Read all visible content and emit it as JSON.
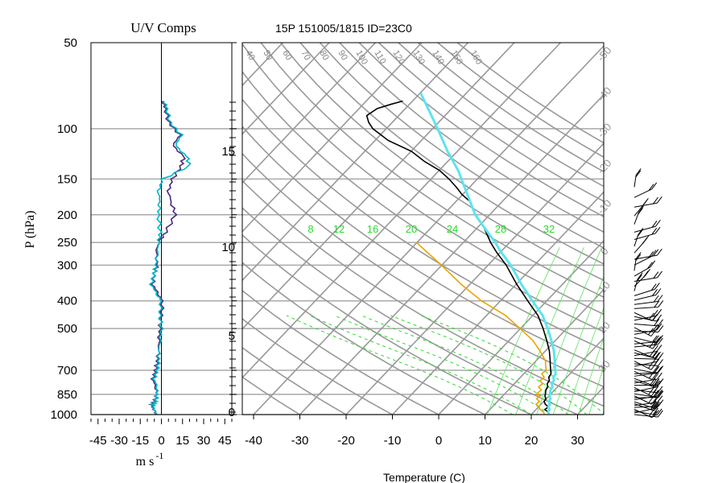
{
  "chart_data": [
    {
      "type": "line",
      "panel": "wind-components",
      "title": "U/V Comps",
      "xlabel": "m s",
      "xlabel_exponent": "-1",
      "ylabel": "P (hPa)",
      "y_scale": "log (reversed)",
      "ylim": [
        1000,
        50
      ],
      "y_ticks": [
        50,
        100,
        150,
        200,
        250,
        300,
        400,
        500,
        700,
        850,
        1000
      ],
      "y_tick_labels": [
        "50",
        "100",
        "150",
        "200",
        "250",
        "300",
        "400",
        "500",
        "700",
        "850",
        "1000"
      ],
      "xlim": [
        -50,
        50
      ],
      "x_ticks": [
        -45,
        -30,
        -15,
        0,
        15,
        30,
        45
      ],
      "x_tick_labels": [
        "-45",
        "-30",
        "-15",
        "0",
        "15",
        "30",
        "45"
      ],
      "grid": true,
      "series": [
        {
          "color": "#4b2a7b",
          "p": [
            1000,
            970,
            930,
            900,
            850,
            800,
            750,
            700,
            650,
            600,
            550,
            500,
            450,
            400,
            380,
            350,
            320,
            300,
            270,
            250,
            230,
            200,
            180,
            165,
            150,
            135,
            125,
            115,
            105,
            95,
            85,
            80
          ],
          "values": [
            -4,
            -5,
            -7,
            -5,
            -3,
            -4,
            -6,
            -4,
            -3,
            -2,
            -2,
            -1,
            0,
            1,
            -2,
            -6,
            -5,
            -3,
            -4,
            -2,
            3,
            10,
            7,
            5,
            8,
            14,
            16,
            8,
            13,
            5,
            3,
            1
          ]
        },
        {
          "color": "#00b8c8",
          "p": [
            1000,
            970,
            930,
            900,
            850,
            800,
            750,
            700,
            650,
            600,
            550,
            500,
            450,
            400,
            380,
            350,
            320,
            300,
            270,
            250,
            230,
            200,
            180,
            165,
            150,
            135,
            125,
            115,
            105,
            95,
            85,
            80
          ],
          "values": [
            -3,
            -5,
            -6,
            -4,
            -3,
            -3,
            -5,
            -3,
            -2,
            -2,
            -1,
            0,
            -1,
            0,
            -3,
            -7,
            -5,
            -4,
            -3,
            -2,
            -1,
            -2,
            -1,
            -2,
            1,
            20,
            18,
            10,
            14,
            6,
            4,
            2
          ]
        }
      ]
    },
    {
      "type": "line",
      "panel": "skew-t",
      "title": "15P 151005/1815 ID=23C0",
      "xlabel": "Temperature (C)",
      "xlim": [
        -40,
        40
      ],
      "x_ticks": [
        -40,
        -30,
        -20,
        -10,
        0,
        10,
        20,
        30
      ],
      "x_tick_labels": [
        "-40",
        "-30",
        "-20",
        "-10",
        "0",
        "10",
        "20",
        "30"
      ],
      "height_ticks_km": [
        0,
        5,
        10,
        15
      ],
      "height_tick_labels": [
        "0",
        "5",
        "10",
        "15"
      ],
      "mixing_ratio_labels": [
        "8",
        "12",
        "16",
        "20",
        "24",
        "28",
        "32"
      ],
      "adiabat_labels": [
        "40",
        "50",
        "60",
        "70",
        "80",
        "90",
        "100",
        "110",
        "120",
        "130",
        "140",
        "150",
        "160"
      ],
      "isotherm_labels": [
        "-50",
        "-40",
        "-30",
        "-20",
        "-10",
        "0",
        "10",
        "20",
        "30"
      ],
      "grid": true,
      "series": [
        {
          "color": "#000000",
          "p": [
            1000,
            980,
            960,
            940,
            920,
            900,
            880,
            860,
            850,
            820,
            800,
            780,
            760,
            740,
            720,
            700,
            670,
            650,
            600,
            550,
            500,
            450,
            400,
            350,
            300,
            270,
            250,
            220,
            200,
            180,
            170,
            160,
            150,
            140,
            130,
            120,
            110,
            100,
            95,
            90,
            85,
            82,
            80
          ],
          "values": [
            24,
            23,
            22,
            22,
            21,
            20,
            20,
            19,
            19,
            18,
            18,
            17,
            17,
            16,
            16,
            15,
            14,
            13,
            11,
            8,
            5,
            1,
            -4,
            -10,
            -16,
            -21,
            -24,
            -29,
            -33,
            -37,
            -40,
            -43,
            -46,
            -50,
            -55,
            -60,
            -67,
            -73,
            -75,
            -77,
            -76,
            -74,
            -72
          ]
        },
        {
          "color": "#e8a500",
          "p": [
            1000,
            980,
            960,
            940,
            920,
            900,
            880,
            860,
            850,
            820,
            800,
            780,
            760,
            740,
            720,
            700,
            670,
            650,
            600,
            550,
            500,
            450,
            400,
            350,
            300,
            270,
            250
          ],
          "values": [
            23,
            22,
            21,
            20,
            19,
            19,
            18,
            18,
            17,
            17,
            16,
            16,
            15,
            15,
            14,
            14,
            13,
            12,
            9,
            5,
            0,
            -6,
            -14,
            -22,
            -30,
            -36,
            -40
          ]
        },
        {
          "color": "#5ee3f0",
          "p": [
            1000,
            980,
            960,
            940,
            920,
            900,
            880,
            860,
            850,
            820,
            800,
            780,
            760,
            740,
            720,
            700,
            670,
            650,
            600,
            550,
            500,
            450,
            400,
            350,
            300,
            270,
            250,
            230,
            200,
            180,
            160,
            140,
            120,
            100,
            85,
            75
          ],
          "values": [
            24,
            23,
            23,
            22,
            22,
            21,
            21,
            20,
            20,
            19,
            19,
            18,
            18,
            17,
            17,
            16,
            15,
            14,
            12,
            9,
            6,
            2,
            -3,
            -9,
            -15,
            -20,
            -23,
            -27,
            -33,
            -37,
            -41,
            -46,
            -52,
            -59,
            -65,
            -70
          ]
        }
      ]
    },
    {
      "type": "barbs",
      "panel": "wind-barbs",
      "description_values_count": 60
    }
  ]
}
